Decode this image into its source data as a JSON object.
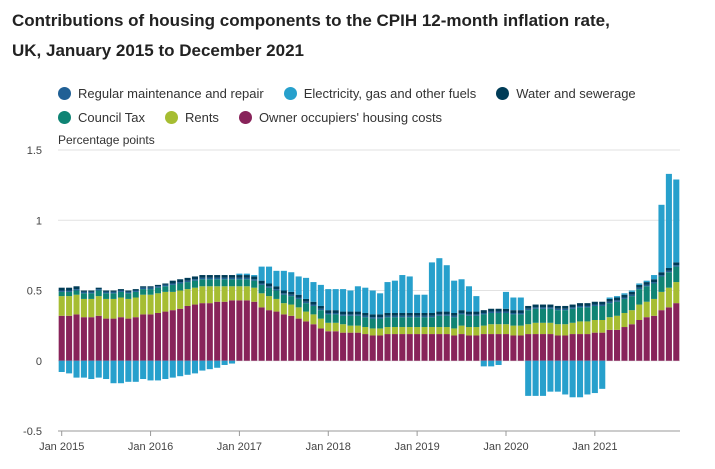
{
  "title_line1": "Contributions of housing components to the CPIH 12-month inflation rate,",
  "title_line2": "UK, January 2015 to December 2021",
  "chart_data": {
    "type": "bar",
    "stacked": true,
    "ylabel": "Percentage points",
    "ylim": [
      -0.5,
      1.5
    ],
    "yticks": [
      -0.5,
      0,
      0.5,
      1,
      1.5
    ],
    "ytick_labels": [
      "-0.5",
      "0",
      "0.5",
      "1",
      "1.5"
    ],
    "xtick_labels": [
      "Jan 2015",
      "Jan 2016",
      "Jan 2017",
      "Jan 2018",
      "Jan 2019",
      "Jan 2020",
      "Jan 2021"
    ],
    "grid": true,
    "legend_position": "top",
    "x": [
      "Jan 2015",
      "Feb 2015",
      "Mar 2015",
      "Apr 2015",
      "May 2015",
      "Jun 2015",
      "Jul 2015",
      "Aug 2015",
      "Sep 2015",
      "Oct 2015",
      "Nov 2015",
      "Dec 2015",
      "Jan 2016",
      "Feb 2016",
      "Mar 2016",
      "Apr 2016",
      "May 2016",
      "Jun 2016",
      "Jul 2016",
      "Aug 2016",
      "Sep 2016",
      "Oct 2016",
      "Nov 2016",
      "Dec 2016",
      "Jan 2017",
      "Feb 2017",
      "Mar 2017",
      "Apr 2017",
      "May 2017",
      "Jun 2017",
      "Jul 2017",
      "Aug 2017",
      "Sep 2017",
      "Oct 2017",
      "Nov 2017",
      "Dec 2017",
      "Jan 2018",
      "Feb 2018",
      "Mar 2018",
      "Apr 2018",
      "May 2018",
      "Jun 2018",
      "Jul 2018",
      "Aug 2018",
      "Sep 2018",
      "Oct 2018",
      "Nov 2018",
      "Dec 2018",
      "Jan 2019",
      "Feb 2019",
      "Mar 2019",
      "Apr 2019",
      "May 2019",
      "Jun 2019",
      "Jul 2019",
      "Aug 2019",
      "Sep 2019",
      "Oct 2019",
      "Nov 2019",
      "Dec 2019",
      "Jan 2020",
      "Feb 2020",
      "Mar 2020",
      "Apr 2020",
      "May 2020",
      "Jun 2020",
      "Jul 2020",
      "Aug 2020",
      "Sep 2020",
      "Oct 2020",
      "Nov 2020",
      "Dec 2020",
      "Jan 2021",
      "Feb 2021",
      "Mar 2021",
      "Apr 2021",
      "May 2021",
      "Jun 2021",
      "Jul 2021",
      "Aug 2021",
      "Sep 2021",
      "Oct 2021",
      "Nov 2021",
      "Dec 2021"
    ],
    "series": [
      {
        "name": "Owner occupiers' housing costs",
        "color": "#88235a",
        "values": [
          0.32,
          0.32,
          0.33,
          0.31,
          0.31,
          0.32,
          0.3,
          0.3,
          0.31,
          0.3,
          0.31,
          0.33,
          0.33,
          0.34,
          0.35,
          0.36,
          0.37,
          0.39,
          0.4,
          0.41,
          0.41,
          0.42,
          0.42,
          0.43,
          0.43,
          0.43,
          0.42,
          0.38,
          0.36,
          0.35,
          0.33,
          0.32,
          0.3,
          0.28,
          0.26,
          0.23,
          0.21,
          0.21,
          0.2,
          0.2,
          0.2,
          0.19,
          0.18,
          0.18,
          0.19,
          0.19,
          0.19,
          0.19,
          0.19,
          0.19,
          0.19,
          0.19,
          0.19,
          0.18,
          0.19,
          0.18,
          0.18,
          0.19,
          0.19,
          0.19,
          0.19,
          0.18,
          0.18,
          0.19,
          0.19,
          0.19,
          0.19,
          0.18,
          0.18,
          0.19,
          0.19,
          0.19,
          0.2,
          0.2,
          0.22,
          0.22,
          0.24,
          0.26,
          0.29,
          0.31,
          0.32,
          0.36,
          0.38,
          0.41
        ]
      },
      {
        "name": "Rents",
        "color": "#a6bd32",
        "values": [
          0.14,
          0.14,
          0.14,
          0.13,
          0.13,
          0.14,
          0.14,
          0.14,
          0.14,
          0.14,
          0.14,
          0.14,
          0.14,
          0.14,
          0.14,
          0.13,
          0.13,
          0.12,
          0.12,
          0.12,
          0.12,
          0.11,
          0.11,
          0.1,
          0.1,
          0.1,
          0.1,
          0.1,
          0.1,
          0.09,
          0.08,
          0.08,
          0.08,
          0.07,
          0.07,
          0.07,
          0.06,
          0.06,
          0.06,
          0.05,
          0.05,
          0.05,
          0.05,
          0.05,
          0.05,
          0.05,
          0.05,
          0.05,
          0.05,
          0.05,
          0.05,
          0.05,
          0.05,
          0.05,
          0.06,
          0.06,
          0.06,
          0.06,
          0.07,
          0.07,
          0.07,
          0.07,
          0.07,
          0.07,
          0.08,
          0.08,
          0.08,
          0.08,
          0.08,
          0.08,
          0.09,
          0.09,
          0.09,
          0.09,
          0.09,
          0.1,
          0.1,
          0.1,
          0.11,
          0.11,
          0.12,
          0.13,
          0.14,
          0.15
        ]
      },
      {
        "name": "Council Tax",
        "color": "#0f8474",
        "values": [
          0.03,
          0.03,
          0.03,
          0.04,
          0.04,
          0.04,
          0.04,
          0.04,
          0.04,
          0.04,
          0.04,
          0.04,
          0.04,
          0.04,
          0.04,
          0.05,
          0.05,
          0.05,
          0.05,
          0.05,
          0.05,
          0.05,
          0.05,
          0.05,
          0.05,
          0.05,
          0.05,
          0.06,
          0.06,
          0.06,
          0.06,
          0.06,
          0.06,
          0.06,
          0.06,
          0.06,
          0.06,
          0.06,
          0.06,
          0.07,
          0.07,
          0.07,
          0.07,
          0.07,
          0.07,
          0.07,
          0.07,
          0.07,
          0.07,
          0.07,
          0.07,
          0.08,
          0.08,
          0.08,
          0.08,
          0.08,
          0.08,
          0.08,
          0.08,
          0.08,
          0.08,
          0.08,
          0.08,
          0.1,
          0.1,
          0.1,
          0.1,
          0.1,
          0.1,
          0.1,
          0.1,
          0.1,
          0.1,
          0.1,
          0.1,
          0.1,
          0.1,
          0.1,
          0.11,
          0.11,
          0.11,
          0.11,
          0.11,
          0.11
        ]
      },
      {
        "name": "Regular maintenance and repair",
        "color": "#206095",
        "values": [
          0.01,
          0.01,
          0.01,
          0.01,
          0.01,
          0.01,
          0.01,
          0.01,
          0.01,
          0.01,
          0.01,
          0.01,
          0.01,
          0.01,
          0.01,
          0.01,
          0.01,
          0.01,
          0.01,
          0.01,
          0.01,
          0.01,
          0.01,
          0.01,
          0.01,
          0.01,
          0.01,
          0.01,
          0.01,
          0.01,
          0.01,
          0.01,
          0.01,
          0.01,
          0.01,
          0.01,
          0.01,
          0.01,
          0.01,
          0.01,
          0.01,
          0.01,
          0.01,
          0.01,
          0.01,
          0.01,
          0.01,
          0.01,
          0.01,
          0.01,
          0.01,
          0.01,
          0.01,
          0.01,
          0.01,
          0.01,
          0.01,
          0.01,
          0.01,
          0.01,
          0.01,
          0.01,
          0.01,
          0.01,
          0.01,
          0.01,
          0.01,
          0.01,
          0.01,
          0.01,
          0.01,
          0.01,
          0.01,
          0.01,
          0.01,
          0.01,
          0.01,
          0.01,
          0.01,
          0.01,
          0.01,
          0.01,
          0.01,
          0.01
        ]
      },
      {
        "name": "Water and sewerage",
        "color": "#003c57",
        "values": [
          0.02,
          0.02,
          0.02,
          0.01,
          0.01,
          0.01,
          0.01,
          0.01,
          0.01,
          0.01,
          0.01,
          0.01,
          0.01,
          0.01,
          0.01,
          0.02,
          0.02,
          0.02,
          0.02,
          0.02,
          0.02,
          0.02,
          0.02,
          0.02,
          0.02,
          0.02,
          0.02,
          0.02,
          0.02,
          0.02,
          0.02,
          0.02,
          0.02,
          0.02,
          0.02,
          0.02,
          0.02,
          0.02,
          0.02,
          0.02,
          0.02,
          0.02,
          0.02,
          0.02,
          0.02,
          0.02,
          0.02,
          0.02,
          0.02,
          0.02,
          0.02,
          0.02,
          0.02,
          0.02,
          0.02,
          0.02,
          0.02,
          0.02,
          0.02,
          0.02,
          0.02,
          0.02,
          0.02,
          0.02,
          0.02,
          0.02,
          0.02,
          0.02,
          0.02,
          0.02,
          0.02,
          0.02,
          0.02,
          0.02,
          0.02,
          0.02,
          0.02,
          0.02,
          0.02,
          0.02,
          0.02,
          0.02,
          0.02,
          0.02
        ]
      },
      {
        "name": "Electricity, gas and other fuels",
        "color": "#27a0cc",
        "values": [
          -0.08,
          -0.09,
          -0.12,
          -0.12,
          -0.13,
          -0.12,
          -0.13,
          -0.16,
          -0.16,
          -0.15,
          -0.15,
          -0.13,
          -0.14,
          -0.14,
          -0.13,
          -0.12,
          -0.11,
          -0.1,
          -0.09,
          -0.07,
          -0.06,
          -0.05,
          -0.03,
          -0.02,
          0.01,
          0.01,
          0.01,
          0.1,
          0.12,
          0.11,
          0.14,
          0.14,
          0.13,
          0.15,
          0.14,
          0.15,
          0.15,
          0.15,
          0.16,
          0.15,
          0.18,
          0.18,
          0.17,
          0.15,
          0.22,
          0.23,
          0.27,
          0.26,
          0.13,
          0.13,
          0.36,
          0.38,
          0.33,
          0.23,
          0.22,
          0.18,
          0.11,
          -0.04,
          -0.04,
          -0.03,
          0.12,
          0.09,
          0.09,
          -0.25,
          -0.25,
          -0.25,
          -0.22,
          -0.22,
          -0.24,
          -0.26,
          -0.26,
          -0.24,
          -0.23,
          -0.2,
          0.01,
          0.01,
          0.01,
          0.01,
          0.01,
          0.01,
          0.03,
          0.48,
          0.67,
          0.59
        ]
      }
    ]
  },
  "legend": {
    "row1": [
      {
        "label": "Regular maintenance and repair",
        "color": "#206095"
      },
      {
        "label": "Electricity, gas and other fuels",
        "color": "#27a0cc"
      },
      {
        "label": "Water and sewerage",
        "color": "#003c57"
      }
    ],
    "row2": [
      {
        "label": "Council Tax",
        "color": "#0f8474"
      },
      {
        "label": "Rents",
        "color": "#a6bd32"
      },
      {
        "label": "Owner occupiers' housing costs",
        "color": "#88235a"
      }
    ]
  }
}
